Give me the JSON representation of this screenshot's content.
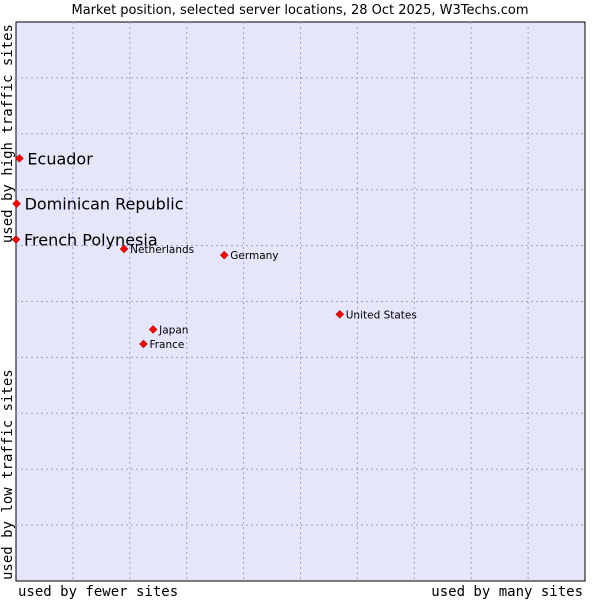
{
  "chart_data": {
    "type": "scatter",
    "title": "Market position, selected server locations, 28 Oct 2025, W3Techs.com",
    "xlabel_left": "used by fewer sites",
    "xlabel_right": "used by many sites",
    "ylabel_bottom": "used by low traffic sites",
    "ylabel_top": "used by high traffic sites",
    "xlim": [
      0,
      100
    ],
    "ylim": [
      0,
      100
    ],
    "grid": true,
    "colors": {
      "plot_bg": "#e6e6fa",
      "marker": "#ff0000",
      "grid": "#a0a0c8"
    },
    "points": [
      {
        "label": "Ecuador",
        "x": 0.6,
        "y": 75.6,
        "highlight": true
      },
      {
        "label": "Dominican Republic",
        "x": 0.1,
        "y": 67.5,
        "highlight": true
      },
      {
        "label": "French Polynesia",
        "x": 0.0,
        "y": 61.1,
        "highlight": true
      },
      {
        "label": "Netherlands",
        "x": 19.0,
        "y": 59.4,
        "highlight": false
      },
      {
        "label": "Germany",
        "x": 36.6,
        "y": 58.3,
        "highlight": false
      },
      {
        "label": "United States",
        "x": 56.9,
        "y": 47.7,
        "highlight": false
      },
      {
        "label": "Japan",
        "x": 24.1,
        "y": 45.0,
        "highlight": false
      },
      {
        "label": "France",
        "x": 22.4,
        "y": 42.4,
        "highlight": false
      }
    ]
  }
}
